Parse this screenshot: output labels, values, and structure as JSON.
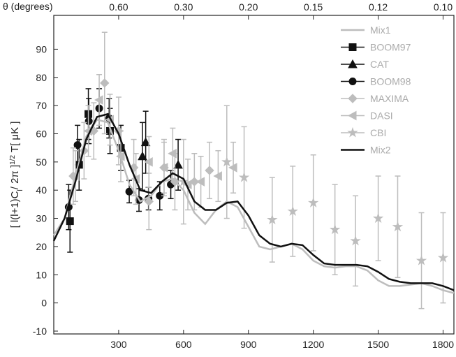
{
  "chart_data": {
    "type": "line",
    "top_axis_label": "θ (degrees)",
    "ylabel": {
      "parts": [
        "[ l(l+1)C",
        "l",
        "/ 2π ]",
        "1/2",
        " T[ μK ]"
      ]
    },
    "xlim": [
      0,
      1850
    ],
    "ylim": [
      -11,
      102
    ],
    "xticks": [
      300,
      600,
      900,
      1200,
      1500,
      1800
    ],
    "yticks": [
      -10,
      0,
      10,
      20,
      30,
      40,
      50,
      60,
      70,
      80,
      90
    ],
    "x2ticks": [
      {
        "value": 0.6,
        "label": "0.60"
      },
      {
        "value": 0.3,
        "label": "0.30"
      },
      {
        "value": 0.2,
        "label": "0.20"
      },
      {
        "value": 0.15,
        "label": "0.15"
      },
      {
        "value": 0.12,
        "label": "0.12"
      },
      {
        "value": 0.1,
        "label": "0.10"
      }
    ],
    "x2_scale": {
      "type": "inverse",
      "factor": 180
    },
    "legend": "upper right",
    "series": [
      {
        "name": "Mix1",
        "color": "#bdbdbd",
        "marker": "line",
        "x": [
          0,
          50,
          100,
          150,
          200,
          250,
          300,
          350,
          400,
          450,
          500,
          550,
          600,
          650,
          700,
          750,
          800,
          850,
          900,
          950,
          1000,
          1050,
          1100,
          1150,
          1200,
          1250,
          1300,
          1350,
          1400,
          1450,
          1500,
          1550,
          1600,
          1650,
          1700,
          1750,
          1800,
          1850
        ],
        "values": [
          24,
          30,
          45,
          59,
          65,
          64,
          54,
          42,
          36,
          38,
          43,
          44,
          40,
          32,
          28,
          33,
          36,
          34,
          27,
          20,
          19,
          20,
          21,
          19,
          15,
          13,
          12.5,
          13,
          13,
          11.5,
          8,
          6,
          6,
          6.5,
          7,
          6,
          4.5,
          3.5
        ]
      },
      {
        "name": "BOOM97",
        "color": "#111111",
        "marker": "square",
        "x": [
          75,
          117,
          160,
          260,
          310
        ],
        "values": [
          29,
          49,
          67,
          61,
          55
        ],
        "errors": [
          11,
          9,
          9,
          8,
          8
        ]
      },
      {
        "name": "CAT",
        "color": "#111111",
        "marker": "triangle",
        "x": [
          410,
          425,
          575
        ],
        "values": [
          52,
          57,
          49
        ],
        "errors": [
          12,
          11,
          9
        ]
      },
      {
        "name": "BOOM98",
        "color": "#111111",
        "marker": "circle",
        "x": [
          69,
          110,
          162,
          210,
          256,
          349,
          394,
          438,
          490,
          541
        ],
        "values": [
          34,
          56,
          64.5,
          69,
          65.5,
          39.5,
          36.5,
          37,
          38,
          42
        ],
        "errors": [
          8,
          7,
          8,
          7,
          7,
          4,
          4,
          4,
          5,
          5
        ]
      },
      {
        "name": "MAXIMA",
        "color": "#bdbdbd",
        "marker": "diamond",
        "x": [
          90,
          140,
          185,
          235,
          300,
          370,
          440,
          510,
          560,
          650,
          720
        ],
        "values": [
          45,
          54,
          61,
          78,
          61,
          48,
          36,
          48,
          43,
          43,
          47
        ],
        "errors": [
          10,
          10,
          10,
          18,
          12,
          10,
          10,
          10,
          10,
          10,
          10
        ]
      },
      {
        "name": "DASI",
        "color": "#bdbdbd",
        "marker": "left",
        "x": [
          100,
          160,
          210,
          260,
          310,
          380,
          440,
          510,
          550,
          620,
          680,
          760,
          830
        ],
        "values": [
          45,
          61,
          72,
          65,
          52,
          44,
          50,
          48,
          53,
          42,
          43,
          45,
          48
        ],
        "errors": [
          9,
          9,
          9,
          9,
          9,
          9,
          9,
          9,
          9,
          9,
          9,
          9,
          9
        ]
      },
      {
        "name": "CBI",
        "color": "#bdbdbd",
        "marker": "star",
        "x": [
          600,
          800,
          880,
          1010,
          1105,
          1200,
          1300,
          1395,
          1500,
          1590,
          1700,
          1800
        ],
        "values": [
          43,
          50,
          44.5,
          29.5,
          32.5,
          35.5,
          26,
          22,
          30,
          27,
          15,
          16
        ],
        "errors": [
          15,
          20,
          18,
          15,
          16,
          17,
          16,
          16,
          15,
          18,
          17,
          16
        ]
      },
      {
        "name": "Mix2",
        "color": "#111111",
        "marker": "line",
        "x": [
          0,
          50,
          100,
          150,
          200,
          250,
          300,
          350,
          400,
          450,
          500,
          550,
          600,
          650,
          700,
          750,
          800,
          850,
          900,
          950,
          1000,
          1050,
          1100,
          1150,
          1200,
          1250,
          1300,
          1350,
          1400,
          1450,
          1500,
          1550,
          1600,
          1650,
          1700,
          1750,
          1800,
          1850
        ],
        "values": [
          22,
          30,
          43,
          58,
          66,
          67,
          60,
          49,
          40,
          39,
          43,
          46,
          44,
          36,
          33,
          33,
          35.5,
          36,
          31,
          24,
          21,
          20,
          21,
          20.5,
          17,
          14,
          13.5,
          13.5,
          13.5,
          13,
          11,
          8.5,
          7.5,
          7,
          7,
          7,
          6,
          4.5
        ]
      }
    ]
  }
}
